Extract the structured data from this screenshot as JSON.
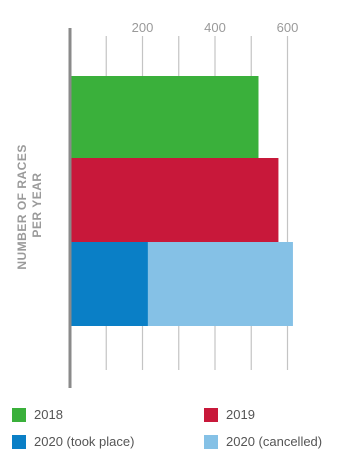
{
  "chart_data": {
    "type": "bar",
    "orientation": "horizontal",
    "stacked": true,
    "ylabel": "NUMBER OF RACES PER YEAR",
    "ylabel_lines": [
      "NUMBER OF RACES",
      "PER YEAR"
    ],
    "xlabel": "",
    "xlim": [
      0,
      640
    ],
    "ticks": [
      {
        "value": 200,
        "label": "200"
      },
      {
        "value": 400,
        "label": "400"
      },
      {
        "value": 600,
        "label": "600"
      }
    ],
    "grid": true,
    "legend_position": "bottom",
    "categories": [
      "2018",
      "2019",
      "2020"
    ],
    "series": [
      {
        "name": "2018",
        "color": "#3ab03b",
        "values": [
          520,
          0,
          0
        ]
      },
      {
        "name": "2019",
        "color": "#c8183a",
        "values": [
          0,
          575,
          0
        ]
      },
      {
        "name": "2020 (took place)",
        "color": "#0a7fc6",
        "values": [
          0,
          0,
          215
        ]
      },
      {
        "name": "2020 (cancelled)",
        "color": "#85c1e6",
        "values": [
          0,
          0,
          400
        ]
      }
    ]
  },
  "legend": {
    "items": [
      {
        "label": "2018",
        "color": "#3ab03b"
      },
      {
        "label": "2019",
        "color": "#c8183a"
      },
      {
        "label": "2020 (took place)",
        "color": "#0a7fc6"
      },
      {
        "label": "2020 (cancelled)",
        "color": "#85c1e6"
      }
    ]
  }
}
